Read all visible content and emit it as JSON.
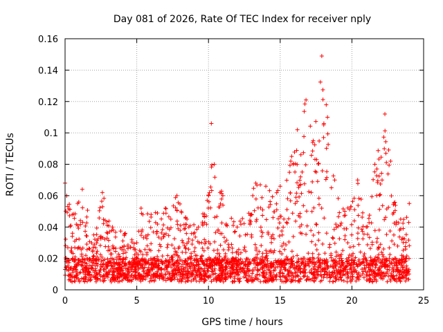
{
  "chart_data": {
    "type": "scatter",
    "title": "Day 081 of 2026, Rate Of TEC Index for receiver nply",
    "xlabel": "GPS time / hours",
    "ylabel": "ROTI / TECUs",
    "xlim": [
      0,
      25
    ],
    "ylim": [
      0,
      0.16
    ],
    "xticks": [
      0,
      5,
      10,
      15,
      20,
      25
    ],
    "yticks": [
      0,
      0.02,
      0.04,
      0.06,
      0.08,
      0.1,
      0.12,
      0.14,
      0.16
    ],
    "xtick_labels": [
      "0",
      "5",
      "10",
      "15",
      "20",
      "25"
    ],
    "ytick_labels": [
      "0",
      "0.02",
      "0.04",
      "0.06",
      "0.08",
      "0.1",
      "0.12",
      "0.14",
      "0.16"
    ],
    "grid": true,
    "marker": "+",
    "color": "#ff0000",
    "series": [
      {
        "name": "ROTI",
        "x_range": [
          0,
          24
        ],
        "baseline_range": [
          0.005,
          0.02
        ],
        "envelope": [
          {
            "x": 0.0,
            "y": 0.068
          },
          {
            "x": 0.5,
            "y": 0.048
          },
          {
            "x": 1.2,
            "y": 0.064
          },
          {
            "x": 2.0,
            "y": 0.035
          },
          {
            "x": 2.6,
            "y": 0.062
          },
          {
            "x": 3.3,
            "y": 0.04
          },
          {
            "x": 4.2,
            "y": 0.036
          },
          {
            "x": 5.0,
            "y": 0.03
          },
          {
            "x": 5.3,
            "y": 0.052
          },
          {
            "x": 6.0,
            "y": 0.048
          },
          {
            "x": 7.0,
            "y": 0.052
          },
          {
            "x": 7.8,
            "y": 0.06
          },
          {
            "x": 8.5,
            "y": 0.045
          },
          {
            "x": 9.3,
            "y": 0.04
          },
          {
            "x": 10.0,
            "y": 0.06
          },
          {
            "x": 10.2,
            "y": 0.106
          },
          {
            "x": 10.4,
            "y": 0.08
          },
          {
            "x": 11.0,
            "y": 0.06
          },
          {
            "x": 12.0,
            "y": 0.04
          },
          {
            "x": 13.3,
            "y": 0.068
          },
          {
            "x": 14.0,
            "y": 0.066
          },
          {
            "x": 15.0,
            "y": 0.066
          },
          {
            "x": 15.8,
            "y": 0.085
          },
          {
            "x": 16.2,
            "y": 0.102
          },
          {
            "x": 16.8,
            "y": 0.121
          },
          {
            "x": 17.3,
            "y": 0.095
          },
          {
            "x": 17.9,
            "y": 0.149
          },
          {
            "x": 18.3,
            "y": 0.11
          },
          {
            "x": 18.8,
            "y": 0.07
          },
          {
            "x": 19.5,
            "y": 0.05
          },
          {
            "x": 20.4,
            "y": 0.07
          },
          {
            "x": 21.0,
            "y": 0.04
          },
          {
            "x": 21.6,
            "y": 0.08
          },
          {
            "x": 22.3,
            "y": 0.112
          },
          {
            "x": 22.7,
            "y": 0.082
          },
          {
            "x": 23.4,
            "y": 0.045
          },
          {
            "x": 24.0,
            "y": 0.055
          }
        ]
      }
    ]
  }
}
